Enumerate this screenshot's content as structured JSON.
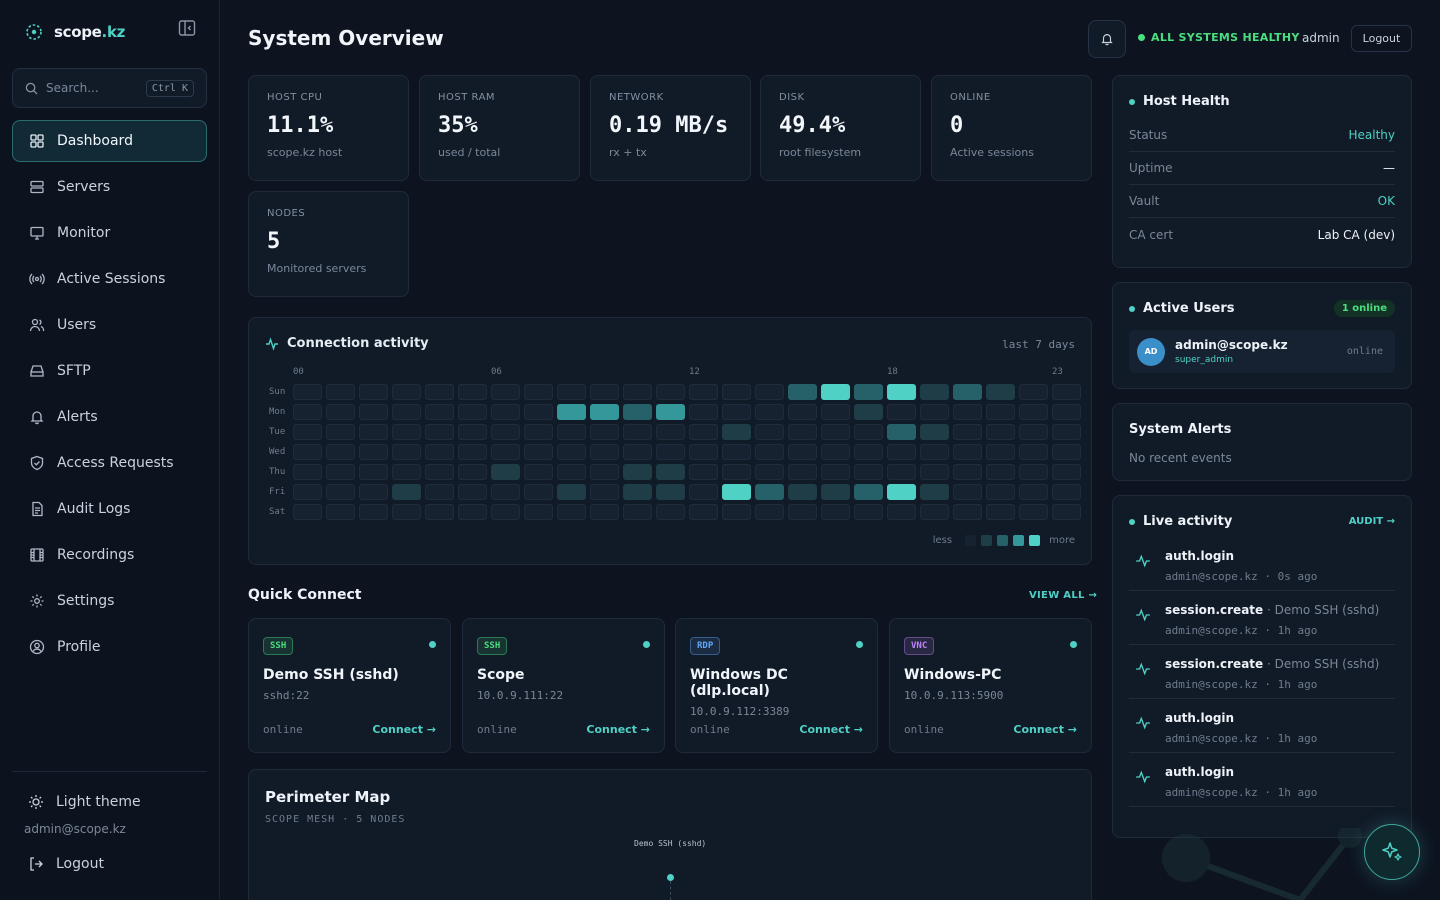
{
  "brand": {
    "name": "scope",
    "accent": ".kz"
  },
  "search": {
    "placeholder": "Search...",
    "shortcut": "Ctrl K"
  },
  "nav": {
    "items": [
      {
        "label": "Dashboard",
        "icon": "dashboard-icon",
        "active": true
      },
      {
        "label": "Servers",
        "icon": "server-icon"
      },
      {
        "label": "Monitor",
        "icon": "monitor-icon"
      },
      {
        "label": "Active Sessions",
        "icon": "broadcast-icon"
      },
      {
        "label": "Users",
        "icon": "users-icon"
      },
      {
        "label": "SFTP",
        "icon": "drive-icon"
      },
      {
        "label": "Alerts",
        "icon": "bell-icon"
      },
      {
        "label": "Access Requests",
        "icon": "shield-icon"
      },
      {
        "label": "Audit Logs",
        "icon": "file-icon"
      },
      {
        "label": "Recordings",
        "icon": "film-icon"
      },
      {
        "label": "Settings",
        "icon": "gear-icon"
      },
      {
        "label": "Profile",
        "icon": "user-circle-icon"
      }
    ]
  },
  "sidebar_footer": {
    "theme_label": "Light theme",
    "user": "admin@scope.kz",
    "logout_label": "Logout"
  },
  "header": {
    "title": "System Overview",
    "status": "ALL SYSTEMS HEALTHY",
    "user": "admin",
    "logout_label": "Logout",
    "status_color": "#4ade80"
  },
  "stats": [
    {
      "label": "HOST CPU",
      "value": "11.1%",
      "sub": "scope.kz host"
    },
    {
      "label": "HOST RAM",
      "value": "35%",
      "sub": "used / total"
    },
    {
      "label": "NETWORK",
      "value": "0.19 MB/s",
      "sub": "rx + tx"
    },
    {
      "label": "DISK",
      "value": "49.4%",
      "sub": "root filesystem"
    },
    {
      "label": "ONLINE",
      "value": "0",
      "sub": "Active sessions"
    },
    {
      "label": "NODES",
      "value": "5",
      "sub": "Monitored servers"
    }
  ],
  "activity": {
    "title": "Connection activity",
    "range": "last 7 days",
    "hour_labels": [
      {
        "hour": 0,
        "text": "00"
      },
      {
        "hour": 6,
        "text": "06"
      },
      {
        "hour": 12,
        "text": "12"
      },
      {
        "hour": 18,
        "text": "18"
      },
      {
        "hour": 23,
        "text": "23"
      }
    ],
    "days": [
      "Sun",
      "Mon",
      "Tue",
      "Wed",
      "Thu",
      "Fri",
      "Sat"
    ],
    "levels": [
      [
        0,
        0,
        0,
        0,
        0,
        0,
        0,
        0,
        0,
        0,
        0,
        0,
        0,
        0,
        0,
        2,
        4,
        2,
        4,
        1,
        2,
        1,
        0,
        0
      ],
      [
        0,
        0,
        0,
        0,
        0,
        0,
        0,
        0,
        3,
        3,
        2,
        3,
        0,
        0,
        0,
        0,
        0,
        1,
        0,
        0,
        0,
        0,
        0,
        0
      ],
      [
        0,
        0,
        0,
        0,
        0,
        0,
        0,
        0,
        0,
        0,
        0,
        0,
        0,
        1,
        0,
        0,
        0,
        0,
        2,
        1,
        0,
        0,
        0,
        0
      ],
      [
        0,
        0,
        0,
        0,
        0,
        0,
        0,
        0,
        0,
        0,
        0,
        0,
        0,
        0,
        0,
        0,
        0,
        0,
        0,
        0,
        0,
        0,
        0,
        0
      ],
      [
        0,
        0,
        0,
        0,
        0,
        0,
        1,
        0,
        0,
        0,
        1,
        1,
        0,
        0,
        0,
        0,
        0,
        0,
        0,
        0,
        0,
        0,
        0,
        0
      ],
      [
        0,
        0,
        0,
        1,
        0,
        0,
        0,
        0,
        1,
        0,
        1,
        1,
        0,
        4,
        2,
        1,
        1,
        2,
        4,
        1,
        0,
        0,
        0,
        0
      ],
      [
        0,
        0,
        0,
        0,
        0,
        0,
        0,
        0,
        0,
        0,
        0,
        0,
        0,
        0,
        0,
        0,
        0,
        0,
        0,
        0,
        0,
        0,
        0,
        0
      ]
    ],
    "level_colors": [
      "#172231",
      "#1f3d47",
      "#266068",
      "#34989a",
      "#4fd1c5"
    ],
    "legend_less": "less",
    "legend_more": "more"
  },
  "quick_connect": {
    "title": "Quick Connect",
    "view_all": "VIEW ALL →",
    "items": [
      {
        "protocol": "SSH",
        "name": "Demo SSH (sshd)",
        "address": "sshd:22",
        "status": "online",
        "action": "Connect →",
        "badge_color": "#4ade80"
      },
      {
        "protocol": "SSH",
        "name": "Scope",
        "address": "10.0.9.111:22",
        "status": "online",
        "action": "Connect →",
        "badge_color": "#4ade80"
      },
      {
        "protocol": "RDP",
        "name": "Windows DC (dlp.local)",
        "address": "10.0.9.112:3389",
        "status": "online",
        "action": "Connect →",
        "badge_color": "#60a5fa"
      },
      {
        "protocol": "VNC",
        "name": "Windows-PC",
        "address": "10.0.9.113:5900",
        "status": "online",
        "action": "Connect →",
        "badge_color": "#c084fc"
      }
    ]
  },
  "map": {
    "title": "Perimeter Map",
    "subtitle": "SCOPE MESH · 5 NODES",
    "node_label": "Demo SSH (sshd)"
  },
  "host_health": {
    "title": "Host Health",
    "rows": [
      {
        "key": "Status",
        "value": "Healthy",
        "color": "#4fd1c5"
      },
      {
        "key": "Uptime",
        "value": "—",
        "color": "#eef3f9"
      },
      {
        "key": "Vault",
        "value": "OK",
        "color": "#4fd1c5"
      },
      {
        "key": "CA cert",
        "value": "Lab CA (dev)",
        "color": "#eef3f9"
      }
    ]
  },
  "active_users": {
    "title": "Active Users",
    "count_label": "1 online",
    "users": [
      {
        "initials": "AD",
        "email": "admin@scope.kz",
        "role": "super_admin",
        "status": "online"
      }
    ]
  },
  "system_alerts": {
    "title": "System Alerts",
    "empty": "No recent events"
  },
  "live_activity": {
    "title": "Live activity",
    "link": "AUDIT →",
    "events": [
      {
        "action": "auth.login",
        "detail": "",
        "user": "admin@scope.kz",
        "time": "0s ago"
      },
      {
        "action": "session.create",
        "detail": " · Demo SSH (sshd)",
        "user": "admin@scope.kz",
        "time": "1h ago"
      },
      {
        "action": "session.create",
        "detail": " · Demo SSH (sshd)",
        "user": "admin@scope.kz",
        "time": "1h ago"
      },
      {
        "action": "auth.login",
        "detail": "",
        "user": "admin@scope.kz",
        "time": "1h ago"
      },
      {
        "action": "auth.login",
        "detail": "",
        "user": "admin@scope.kz",
        "time": "1h ago"
      }
    ]
  }
}
